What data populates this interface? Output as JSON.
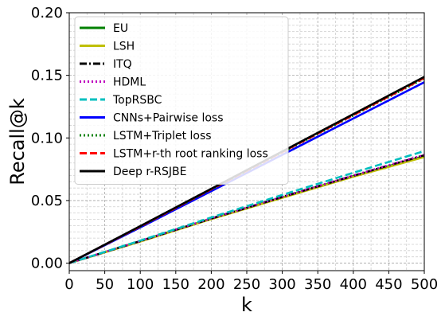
{
  "chart_data": {
    "type": "line",
    "xlabel": "k",
    "ylabel": "Recall@k",
    "xlim": [
      0,
      500
    ],
    "ylim": [
      -0.006,
      0.2
    ],
    "x_ticks": [
      0,
      50,
      100,
      150,
      200,
      250,
      300,
      350,
      400,
      450,
      500
    ],
    "y_ticks": [
      0.0,
      0.05,
      0.1,
      0.15,
      0.2
    ],
    "x_tick_labels": [
      "0",
      "50",
      "100",
      "150",
      "200",
      "250",
      "300",
      "350",
      "400",
      "450",
      "500"
    ],
    "y_tick_labels": [
      "0.00",
      "0.05",
      "0.10",
      "0.15",
      "0.20"
    ],
    "grid": true,
    "legend_position": "top-left",
    "series": [
      {
        "name": "EU",
        "color": "#008000",
        "dash": "solid",
        "x": [
          0,
          100,
          200,
          300,
          400,
          500
        ],
        "y": [
          0.0,
          0.0175,
          0.0355,
          0.0525,
          0.0695,
          0.0855
        ]
      },
      {
        "name": "LSH",
        "color": "#bfbf00",
        "dash": "solid",
        "x": [
          0,
          100,
          200,
          300,
          400,
          500
        ],
        "y": [
          0.0,
          0.0172,
          0.0352,
          0.0522,
          0.069,
          0.0848
        ]
      },
      {
        "name": "ITQ",
        "color": "#000000",
        "dash": "dashdot",
        "x": [
          0,
          100,
          200,
          300,
          400,
          500
        ],
        "y": [
          0.0,
          0.0176,
          0.0356,
          0.0528,
          0.0698,
          0.0862
        ]
      },
      {
        "name": "HDML",
        "color": "#bf00bf",
        "dash": "dotted",
        "x": [
          0,
          100,
          200,
          300,
          400,
          500
        ],
        "y": [
          0.0,
          0.0177,
          0.0358,
          0.053,
          0.07,
          0.0865
        ]
      },
      {
        "name": "TopRSBC",
        "color": "#00bfbf",
        "dash": "dashed",
        "x": [
          0,
          100,
          200,
          300,
          400,
          500
        ],
        "y": [
          0.0,
          0.018,
          0.0365,
          0.0545,
          0.0722,
          0.0895
        ]
      },
      {
        "name": "CNNs+Pairwise loss",
        "color": "#0000ff",
        "dash": "solid",
        "x": [
          0,
          100,
          200,
          300,
          400,
          500
        ],
        "y": [
          0.0,
          0.0285,
          0.0575,
          0.0865,
          0.1155,
          0.1445
        ]
      },
      {
        "name": "LSTM+Triplet loss",
        "color": "#008000",
        "dash": "dotted",
        "x": [
          0,
          100,
          200,
          300,
          400,
          500
        ],
        "y": [
          0.0,
          0.0292,
          0.0588,
          0.0884,
          0.118,
          0.1475
        ]
      },
      {
        "name": "LSTM+r-th root ranking loss",
        "color": "#ff0000",
        "dash": "dashed",
        "x": [
          0,
          100,
          200,
          300,
          400,
          500
        ],
        "y": [
          0.0,
          0.0293,
          0.059,
          0.0887,
          0.1183,
          0.148
        ]
      },
      {
        "name": "Deep r-RSJBE",
        "color": "#000000",
        "dash": "solid",
        "x": [
          0,
          100,
          200,
          300,
          400,
          500
        ],
        "y": [
          0.0,
          0.0296,
          0.0594,
          0.0892,
          0.119,
          0.1488
        ]
      }
    ]
  }
}
